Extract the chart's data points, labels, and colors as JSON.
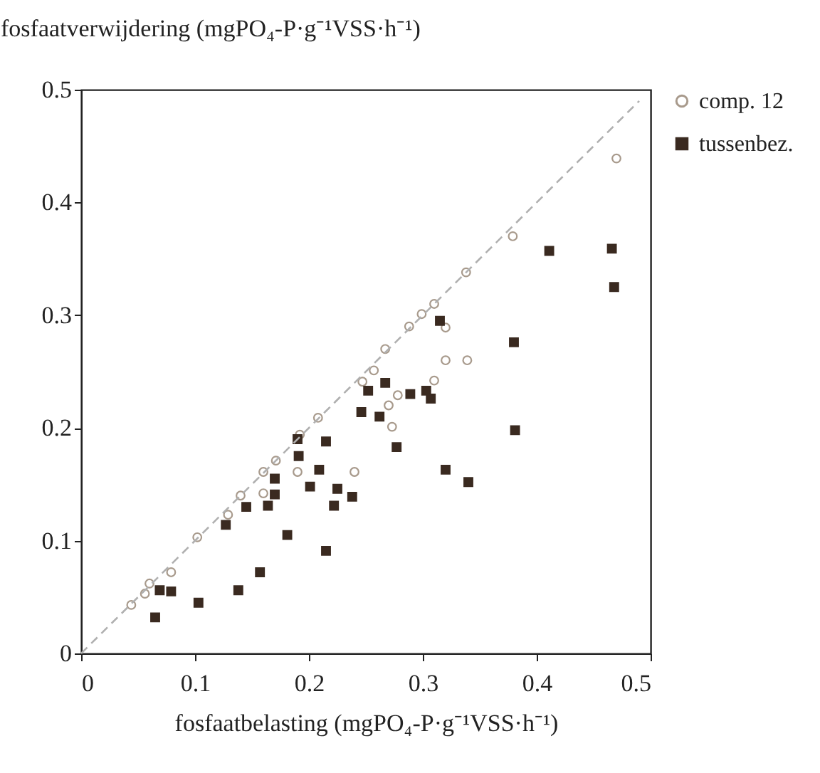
{
  "chart_data": {
    "type": "scatter",
    "xlabel": "fosfaatbelasting (mgPO₄-P·g⁻¹VSS·h⁻¹)",
    "ylabel": "fosfaatverwijdering (mgPO₄-P·g⁻¹VSS·h⁻¹)",
    "xlim": [
      0,
      0.5
    ],
    "ylim": [
      0,
      0.5
    ],
    "xticks": [
      0,
      0.1,
      0.2,
      0.3,
      0.4,
      0.5
    ],
    "yticks": [
      0,
      0.1,
      0.2,
      0.3,
      0.4,
      0.5
    ],
    "grid": false,
    "legend": "right",
    "line_style": "dashed",
    "series": [
      {
        "name": "comp. 12",
        "color": "#a89a8c",
        "marker": "circle",
        "x": [
          0.47,
          0.379,
          0.338,
          0.31,
          0.32,
          0.32,
          0.339,
          0.31,
          0.299,
          0.288,
          0.267,
          0.257,
          0.247,
          0.278,
          0.27,
          0.273,
          0.208,
          0.192,
          0.171,
          0.16,
          0.19,
          0.16,
          0.24,
          0.14,
          0.129,
          0.102,
          0.079,
          0.06,
          0.056,
          0.044
        ],
        "values": [
          0.439,
          0.37,
          0.338,
          0.31,
          0.289,
          0.26,
          0.26,
          0.242,
          0.301,
          0.29,
          0.27,
          0.251,
          0.241,
          0.229,
          0.22,
          0.201,
          0.209,
          0.194,
          0.171,
          0.161,
          0.161,
          0.142,
          0.161,
          0.14,
          0.123,
          0.103,
          0.072,
          0.062,
          0.053,
          0.043
        ]
      },
      {
        "name": "tussenbez.",
        "color": "#3a2a20",
        "marker": "square",
        "x": [
          0.065,
          0.069,
          0.079,
          0.103,
          0.138,
          0.157,
          0.181,
          0.215,
          0.127,
          0.145,
          0.164,
          0.17,
          0.17,
          0.19,
          0.191,
          0.215,
          0.209,
          0.201,
          0.225,
          0.222,
          0.238,
          0.315,
          0.252,
          0.267,
          0.246,
          0.262,
          0.289,
          0.303,
          0.307,
          0.277,
          0.32,
          0.34,
          0.411,
          0.466,
          0.468,
          0.38,
          0.381
        ],
        "values": [
          0.032,
          0.056,
          0.055,
          0.045,
          0.056,
          0.072,
          0.105,
          0.091,
          0.114,
          0.13,
          0.131,
          0.141,
          0.155,
          0.19,
          0.175,
          0.188,
          0.163,
          0.148,
          0.146,
          0.131,
          0.139,
          0.295,
          0.233,
          0.24,
          0.214,
          0.21,
          0.23,
          0.233,
          0.226,
          0.183,
          0.163,
          0.152,
          0.357,
          0.359,
          0.325,
          0.276,
          0.198
        ]
      },
      {
        "type": "line",
        "color": "#b0b0b0",
        "x": [
          0,
          0.49
        ],
        "values": [
          0,
          0.49
        ]
      }
    ]
  }
}
